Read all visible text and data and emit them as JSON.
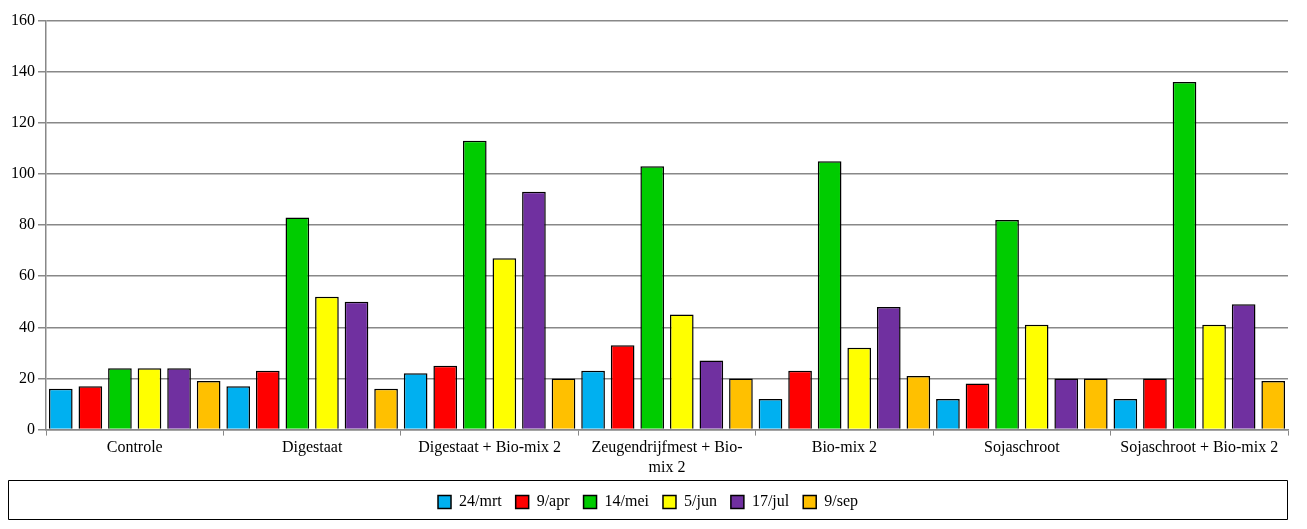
{
  "chart_data": {
    "type": "bar",
    "categories": [
      "Controle",
      "Digestaat",
      "Digestaat + Bio-mix 2",
      "Zeugendrijfmest + Bio-mix 2",
      "Bio-mix 2",
      "Sojaschroot",
      "Sojaschroot + Bio-mix 2"
    ],
    "series": [
      {
        "name": "24/mrt",
        "color": "#00b0f0",
        "values": [
          16,
          17,
          22,
          23,
          12,
          12,
          12
        ]
      },
      {
        "name": "9/apr",
        "color": "#ff0000",
        "values": [
          17,
          23,
          25,
          33,
          23,
          18,
          20
        ]
      },
      {
        "name": "14/mei",
        "color": "#00cc00",
        "values": [
          24,
          83,
          113,
          103,
          105,
          82,
          136
        ]
      },
      {
        "name": "5/jun",
        "color": "#ffff00",
        "values": [
          24,
          52,
          67,
          45,
          32,
          41,
          41
        ]
      },
      {
        "name": "17/jul",
        "color": "#7030a0",
        "values": [
          24,
          50,
          93,
          27,
          48,
          20,
          49
        ]
      },
      {
        "name": "9/sep",
        "color": "#ffc000",
        "values": [
          19,
          16,
          20,
          20,
          21,
          20,
          19
        ]
      }
    ],
    "ylim": [
      0,
      160
    ],
    "yticks": [
      0,
      20,
      40,
      60,
      80,
      100,
      120,
      140,
      160
    ],
    "grid": "y",
    "legend": "bottom"
  }
}
